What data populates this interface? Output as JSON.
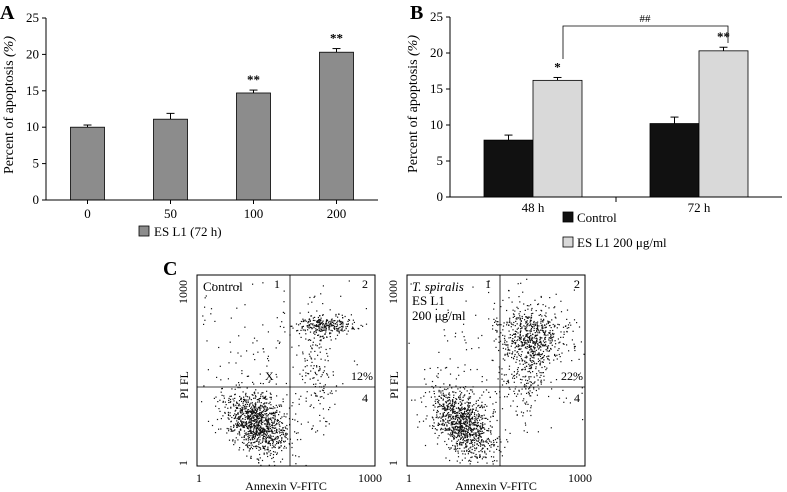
{
  "chart_data": [
    {
      "panel": "A",
      "type": "bar",
      "ylabel_main": "Percent of apoptosis ",
      "ylabel_unit": "(%)",
      "ylim": [
        0,
        25
      ],
      "yticks": [
        "0",
        "5",
        "10",
        "15",
        "20",
        "25"
      ],
      "categories": [
        "0",
        "50",
        "100",
        "200"
      ],
      "series": [
        {
          "name": "ES L1 (72 h)",
          "color": "#8c8c8c",
          "values": [
            10.0,
            11.1,
            14.7,
            20.3
          ],
          "errors": [
            0.3,
            0.8,
            0.4,
            0.5
          ],
          "annotations": [
            "",
            "",
            "**",
            "**"
          ]
        }
      ]
    },
    {
      "panel": "B",
      "type": "bar",
      "ylabel_main": "Percent of apoptosis ",
      "ylabel_unit": "(%)",
      "ylim": [
        0,
        25
      ],
      "yticks": [
        "0",
        "5",
        "10",
        "15",
        "20",
        "25"
      ],
      "categories": [
        "48 h",
        "72 h"
      ],
      "series": [
        {
          "name": "Control",
          "color": "#111111",
          "values": [
            7.9,
            10.2
          ],
          "errors": [
            0.7,
            0.9
          ],
          "annotations": [
            "",
            ""
          ]
        },
        {
          "name": "ES L1 200 μg/ml",
          "color": "#d9d9d9",
          "values": [
            16.2,
            20.3
          ],
          "errors": [
            0.4,
            0.5
          ],
          "annotations": [
            "*",
            "**"
          ]
        }
      ],
      "bracket_label": "##"
    },
    {
      "panel": "C",
      "type": "scatter",
      "plots": [
        {
          "label_lines": [
            "Control"
          ],
          "italic_first": false,
          "quadrants": [
            "1",
            "2",
            "4"
          ],
          "percent": "12%",
          "marker": "X"
        },
        {
          "label_lines": [
            "T. spiralis",
            "ES L1",
            "200 μg/ml"
          ],
          "italic_first": true,
          "quadrants": [
            "1",
            "2",
            "4"
          ],
          "percent": "22%",
          "marker": ""
        }
      ],
      "xlabel": "Annexin V-FITC",
      "ylabel": "PI FL",
      "xticks": [
        "1",
        "1000"
      ],
      "yticks": [
        "1000",
        "1"
      ]
    }
  ]
}
